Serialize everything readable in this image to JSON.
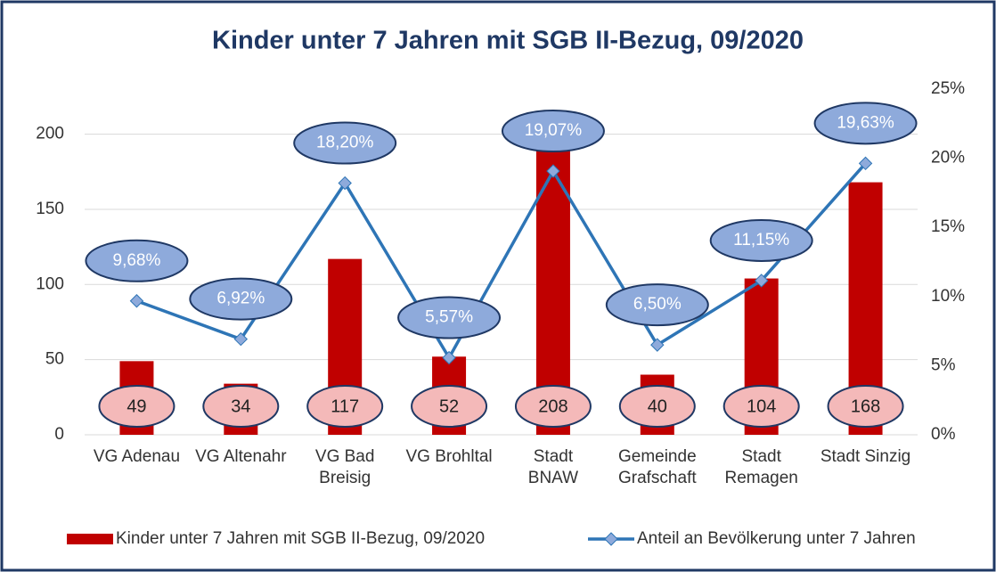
{
  "chart_data": {
    "type": "bar-line",
    "title": "Kinder unter 7 Jahren mit SGB II-Bezug, 09/2020",
    "categories": [
      [
        "VG Adenau"
      ],
      [
        "VG Altenahr"
      ],
      [
        "VG Bad",
        "Breisig"
      ],
      [
        "VG Brohltal"
      ],
      [
        "Stadt",
        "BNAW"
      ],
      [
        "Gemeinde",
        "Grafschaft"
      ],
      [
        "Stadt",
        "Remagen"
      ],
      [
        "Stadt Sinzig"
      ]
    ],
    "series": [
      {
        "name": "Kinder unter 7 Jahren mit SGB II-Bezug, 09/2020",
        "type": "bar",
        "color": "#c00000",
        "values": [
          49,
          34,
          117,
          52,
          208,
          40,
          104,
          168
        ]
      },
      {
        "name": "Anteil an Bevölkerung unter 7 Jahren",
        "type": "line",
        "axis": "y2",
        "color": "#2e75b6",
        "values": [
          9.68,
          6.92,
          18.2,
          5.57,
          19.07,
          6.5,
          11.15,
          19.63
        ],
        "value_labels": [
          "9,68%",
          "6,92%",
          "18,20%",
          "5,57%",
          "19,07%",
          "6,50%",
          "11,15%",
          "19,63%"
        ]
      }
    ],
    "ylim": [
      0,
      230
    ],
    "yticks": [
      0,
      50,
      100,
      150,
      200
    ],
    "y2lim": [
      0,
      25
    ],
    "y2ticks": [
      {
        "value": 0,
        "label": "0%"
      },
      {
        "value": 5,
        "label": "5%"
      },
      {
        "value": 10,
        "label": "10%"
      },
      {
        "value": 15,
        "label": "15%"
      },
      {
        "value": 20,
        "label": "20%"
      },
      {
        "value": 25,
        "label": "25%"
      }
    ],
    "grid": true,
    "legend": "bottom"
  }
}
